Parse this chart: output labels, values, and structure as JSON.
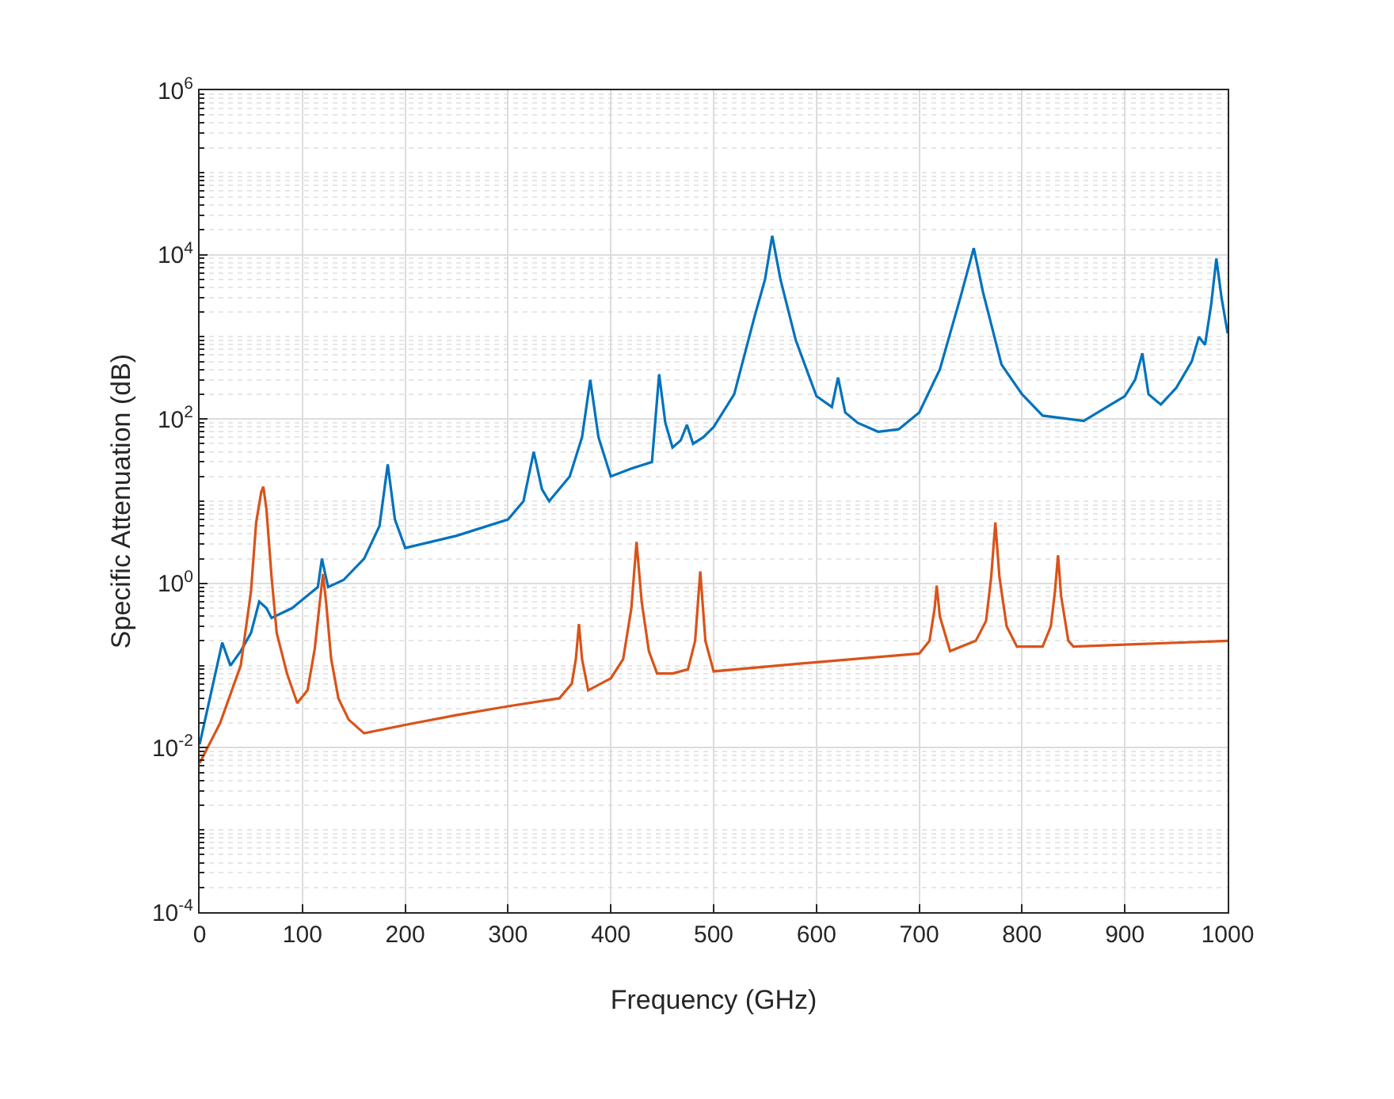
{
  "chart_data": {
    "type": "line",
    "xlabel": "Frequency (GHz)",
    "ylabel": "Specific Attenuation (dB)",
    "log": "y",
    "grid": true,
    "line_style": "solid",
    "xlim": [
      0,
      1000
    ],
    "xticks": [
      0,
      100,
      200,
      300,
      400,
      500,
      600,
      700,
      800,
      900,
      1000
    ],
    "ylim": [
      0.0001,
      1000000
    ],
    "yticks": [
      {
        "value": 0.0001,
        "label": "10$^{-4}$"
      },
      {
        "value": 0.01,
        "label": "10$^{-2}$"
      },
      {
        "value": 1,
        "label": "10$^{0}$"
      },
      {
        "value": 100,
        "label": "10$^{2}$"
      },
      {
        "value": 10000,
        "label": "10$^{4}$"
      },
      {
        "value": 1000000,
        "label": "10$^{6}$"
      }
    ],
    "series": [
      {
        "color": "#0072bd",
        "x": [
          0,
          10,
          22,
          30,
          40,
          50,
          58,
          65,
          70,
          90,
          110,
          115,
          119,
          125,
          140,
          160,
          175,
          183,
          190,
          200,
          250,
          300,
          315,
          325,
          333,
          340,
          360,
          372,
          380,
          388,
          400,
          420,
          440,
          447,
          453,
          460,
          468,
          474,
          480,
          490,
          500,
          520,
          540,
          550,
          557,
          565,
          580,
          600,
          615,
          621,
          628,
          640,
          660,
          680,
          700,
          720,
          740,
          753,
          762,
          780,
          800,
          820,
          860,
          900,
          910,
          917,
          923,
          935,
          950,
          965,
          972,
          978,
          984,
          989,
          994,
          1000
        ],
        "values": [
          0.011,
          0.04,
          0.19,
          0.1,
          0.15,
          0.25,
          0.6,
          0.5,
          0.38,
          0.5,
          0.8,
          0.9,
          2.0,
          0.9,
          1.1,
          2.0,
          5,
          28,
          6,
          2.7,
          3.8,
          6,
          10,
          40,
          14,
          10,
          20,
          60,
          300,
          60,
          20,
          25,
          30,
          350,
          90,
          45,
          55,
          85,
          50,
          60,
          80,
          200,
          1800,
          5000,
          17000,
          5000,
          900,
          190,
          140,
          320,
          120,
          90,
          70,
          75,
          120,
          400,
          3000,
          12000,
          3500,
          460,
          200,
          110,
          95,
          190,
          300,
          630,
          200,
          150,
          240,
          500,
          1000,
          800,
          2500,
          9000,
          3000,
          1100
        ]
      },
      {
        "color": "#d95319",
        "x": [
          0,
          20,
          40,
          50,
          55,
          60,
          62,
          65,
          70,
          75,
          85,
          95,
          105,
          112,
          117,
          120,
          123,
          128,
          135,
          145,
          160,
          200,
          250,
          300,
          350,
          362,
          366,
          369,
          372,
          378,
          400,
          412,
          420,
          425,
          430,
          437,
          445,
          460,
          475,
          482,
          487,
          492,
          500,
          600,
          700,
          710,
          715,
          717,
          720,
          730,
          755,
          765,
          770,
          774,
          778,
          785,
          795,
          820,
          828,
          832,
          835,
          838,
          845,
          850,
          900,
          1000
        ],
        "values": [
          0.0065,
          0.02,
          0.1,
          0.8,
          5.5,
          13,
          15,
          8,
          1.2,
          0.25,
          0.08,
          0.035,
          0.05,
          0.16,
          0.6,
          1.3,
          0.6,
          0.12,
          0.04,
          0.022,
          0.015,
          0.019,
          0.025,
          0.032,
          0.04,
          0.06,
          0.12,
          0.32,
          0.12,
          0.05,
          0.07,
          0.12,
          0.5,
          3.2,
          0.6,
          0.15,
          0.08,
          0.08,
          0.09,
          0.2,
          1.4,
          0.2,
          0.085,
          0.11,
          0.14,
          0.2,
          0.5,
          0.94,
          0.4,
          0.15,
          0.2,
          0.35,
          1.2,
          5.5,
          1.2,
          0.3,
          0.17,
          0.17,
          0.3,
          0.8,
          2.2,
          0.7,
          0.2,
          0.17,
          0.18,
          0.2
        ]
      }
    ]
  }
}
